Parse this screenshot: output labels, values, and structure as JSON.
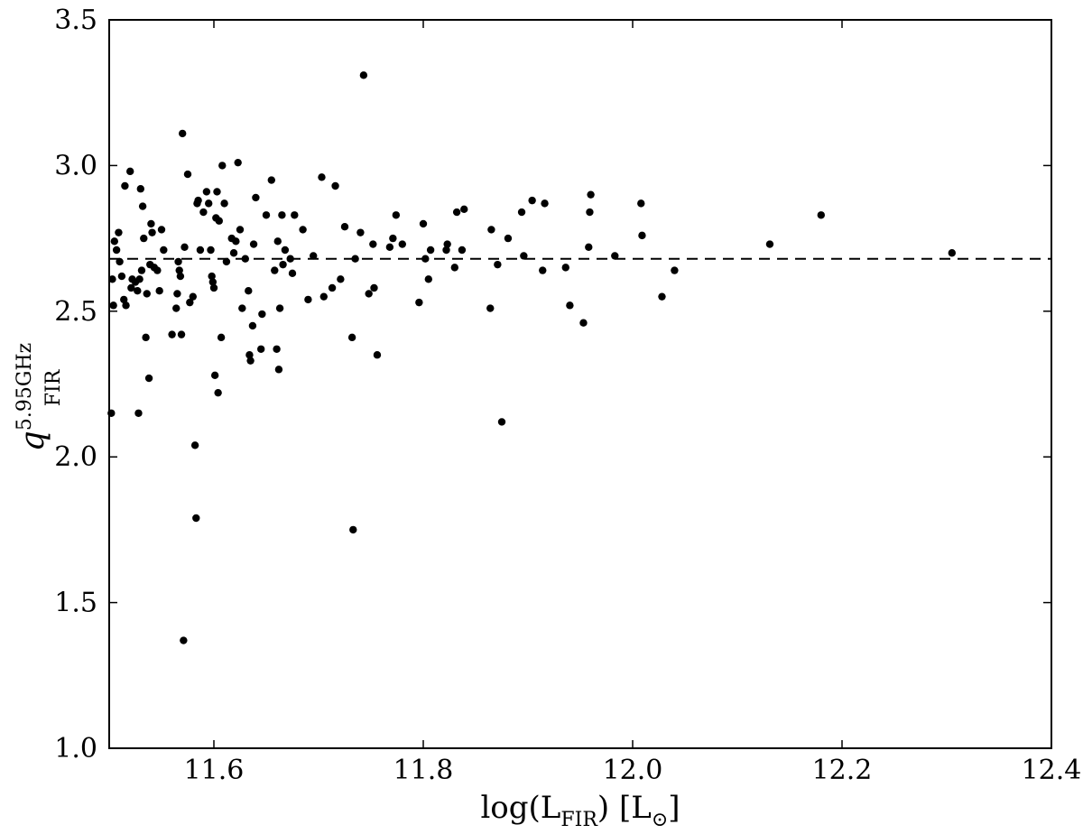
{
  "chart_data": {
    "type": "scatter",
    "title": "",
    "xlabel": {
      "main": "log(L",
      "sub": "FIR",
      "after": ") [L",
      "sub2": "⊙",
      "end": "]"
    },
    "ylabel": {
      "base": "q",
      "sup": "5.95GHz",
      "sub": "FIR"
    },
    "xlim": [
      11.5,
      12.4
    ],
    "ylim": [
      1.0,
      3.5
    ],
    "xticks": [
      11.6,
      11.8,
      12.0,
      12.2,
      12.4
    ],
    "xtick_labels": [
      "11.6",
      "11.8",
      "12.0",
      "12.2",
      "12.4"
    ],
    "yticks": [
      1.0,
      1.5,
      2.0,
      2.5,
      3.0,
      3.5
    ],
    "ytick_labels": [
      "1.0",
      "1.5",
      "2.0",
      "2.5",
      "3.0",
      "3.5"
    ],
    "grid": false,
    "hline": {
      "y": 2.68,
      "style": "dashed"
    },
    "point_color": "#000000",
    "points": [
      [
        11.502,
        2.15
      ],
      [
        11.503,
        2.61
      ],
      [
        11.504,
        2.52
      ],
      [
        11.505,
        2.74
      ],
      [
        11.507,
        2.71
      ],
      [
        11.509,
        2.77
      ],
      [
        11.51,
        2.67
      ],
      [
        11.512,
        2.62
      ],
      [
        11.514,
        2.54
      ],
      [
        11.515,
        2.93
      ],
      [
        11.516,
        2.52
      ],
      [
        11.52,
        2.98
      ],
      [
        11.521,
        2.58
      ],
      [
        11.522,
        2.61
      ],
      [
        11.525,
        2.6
      ],
      [
        11.527,
        2.57
      ],
      [
        11.528,
        2.15
      ],
      [
        11.529,
        2.61
      ],
      [
        11.53,
        2.92
      ],
      [
        11.531,
        2.64
      ],
      [
        11.532,
        2.86
      ],
      [
        11.533,
        2.75
      ],
      [
        11.535,
        2.41
      ],
      [
        11.536,
        2.56
      ],
      [
        11.538,
        2.27
      ],
      [
        11.539,
        2.66
      ],
      [
        11.54,
        2.8
      ],
      [
        11.541,
        2.77
      ],
      [
        11.543,
        2.65
      ],
      [
        11.546,
        2.64
      ],
      [
        11.548,
        2.57
      ],
      [
        11.55,
        2.78
      ],
      [
        11.552,
        2.71
      ],
      [
        11.56,
        2.42
      ],
      [
        11.564,
        2.51
      ],
      [
        11.565,
        2.56
      ],
      [
        11.566,
        2.67
      ],
      [
        11.567,
        2.64
      ],
      [
        11.568,
        2.62
      ],
      [
        11.569,
        2.42
      ],
      [
        11.57,
        3.11
      ],
      [
        11.571,
        1.37
      ],
      [
        11.572,
        2.72
      ],
      [
        11.575,
        2.97
      ],
      [
        11.577,
        2.53
      ],
      [
        11.58,
        2.55
      ],
      [
        11.582,
        2.04
      ],
      [
        11.583,
        1.79
      ],
      [
        11.584,
        2.87
      ],
      [
        11.585,
        2.88
      ],
      [
        11.587,
        2.71
      ],
      [
        11.59,
        2.84
      ],
      [
        11.593,
        2.91
      ],
      [
        11.595,
        2.87
      ],
      [
        11.597,
        2.71
      ],
      [
        11.598,
        2.62
      ],
      [
        11.599,
        2.6
      ],
      [
        11.6,
        2.58
      ],
      [
        11.601,
        2.28
      ],
      [
        11.602,
        2.82
      ],
      [
        11.603,
        2.91
      ],
      [
        11.604,
        2.22
      ],
      [
        11.605,
        2.81
      ],
      [
        11.607,
        2.41
      ],
      [
        11.608,
        3.0
      ],
      [
        11.61,
        2.87
      ],
      [
        11.612,
        2.67
      ],
      [
        11.617,
        2.75
      ],
      [
        11.619,
        2.7
      ],
      [
        11.621,
        2.74
      ],
      [
        11.623,
        3.01
      ],
      [
        11.625,
        2.78
      ],
      [
        11.627,
        2.51
      ],
      [
        11.63,
        2.68
      ],
      [
        11.633,
        2.57
      ],
      [
        11.634,
        2.35
      ],
      [
        11.635,
        2.33
      ],
      [
        11.637,
        2.45
      ],
      [
        11.638,
        2.73
      ],
      [
        11.64,
        2.89
      ],
      [
        11.645,
        2.37
      ],
      [
        11.646,
        2.49
      ],
      [
        11.65,
        2.83
      ],
      [
        11.655,
        2.95
      ],
      [
        11.658,
        2.64
      ],
      [
        11.66,
        2.37
      ],
      [
        11.661,
        2.74
      ],
      [
        11.662,
        2.3
      ],
      [
        11.663,
        2.51
      ],
      [
        11.665,
        2.83
      ],
      [
        11.666,
        2.66
      ],
      [
        11.668,
        2.71
      ],
      [
        11.673,
        2.68
      ],
      [
        11.675,
        2.63
      ],
      [
        11.677,
        2.83
      ],
      [
        11.685,
        2.78
      ],
      [
        11.69,
        2.54
      ],
      [
        11.695,
        2.69
      ],
      [
        11.703,
        2.96
      ],
      [
        11.705,
        2.55
      ],
      [
        11.713,
        2.58
      ],
      [
        11.716,
        2.93
      ],
      [
        11.721,
        2.61
      ],
      [
        11.725,
        2.79
      ],
      [
        11.732,
        2.41
      ],
      [
        11.733,
        1.75
      ],
      [
        11.735,
        2.68
      ],
      [
        11.74,
        2.77
      ],
      [
        11.743,
        3.31
      ],
      [
        11.748,
        2.56
      ],
      [
        11.752,
        2.73
      ],
      [
        11.753,
        2.58
      ],
      [
        11.756,
        2.35
      ],
      [
        11.768,
        2.72
      ],
      [
        11.771,
        2.75
      ],
      [
        11.774,
        2.83
      ],
      [
        11.78,
        2.73
      ],
      [
        11.796,
        2.53
      ],
      [
        11.8,
        2.8
      ],
      [
        11.802,
        2.68
      ],
      [
        11.805,
        2.61
      ],
      [
        11.807,
        2.71
      ],
      [
        11.822,
        2.71
      ],
      [
        11.823,
        2.73
      ],
      [
        11.83,
        2.65
      ],
      [
        11.832,
        2.84
      ],
      [
        11.837,
        2.71
      ],
      [
        11.839,
        2.85
      ],
      [
        11.864,
        2.51
      ],
      [
        11.865,
        2.78
      ],
      [
        11.871,
        2.66
      ],
      [
        11.875,
        2.12
      ],
      [
        11.881,
        2.75
      ],
      [
        11.894,
        2.84
      ],
      [
        11.896,
        2.69
      ],
      [
        11.904,
        2.88
      ],
      [
        11.914,
        2.64
      ],
      [
        11.916,
        2.87
      ],
      [
        11.936,
        2.65
      ],
      [
        11.94,
        2.52
      ],
      [
        11.953,
        2.46
      ],
      [
        11.958,
        2.72
      ],
      [
        11.959,
        2.84
      ],
      [
        11.96,
        2.9
      ],
      [
        11.983,
        2.69
      ],
      [
        12.008,
        2.87
      ],
      [
        12.009,
        2.76
      ],
      [
        12.028,
        2.55
      ],
      [
        12.04,
        2.64
      ],
      [
        12.131,
        2.73
      ],
      [
        12.18,
        2.83
      ],
      [
        12.305,
        2.7
      ]
    ]
  }
}
